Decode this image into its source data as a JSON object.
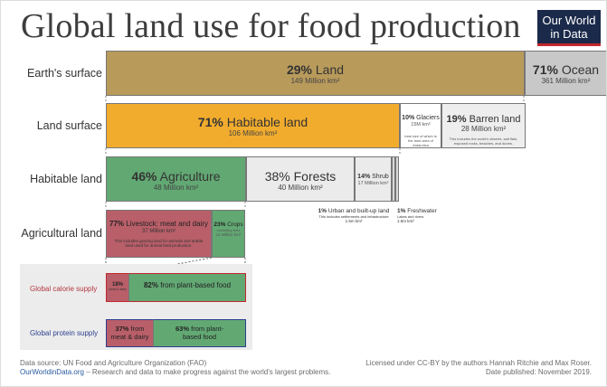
{
  "header": {
    "title": "Global land use for food production",
    "logo_line1": "Our World",
    "logo_line2": "in Data"
  },
  "rows": {
    "earth": "Earth's surface",
    "land": "Land surface",
    "habitable": "Habitable land",
    "agri": "Agricultural land",
    "calorie": "Global calorie supply",
    "protein": "Global protein supply"
  },
  "colors": {
    "land": "#b89a5b",
    "ocean": "#c8c8c8",
    "habitable": "#f2ac2d",
    "barren": "#eeeeee",
    "agriculture": "#62a873",
    "forest": "#ebebeb",
    "livestock": "#b95f69",
    "crops": "#62a873"
  },
  "chart_data": {
    "type": "table",
    "earth": {
      "land": {
        "pct": "29%",
        "name": "Land",
        "area": "149 Million km²",
        "value": 29
      },
      "ocean": {
        "pct": "71%",
        "name": "Ocean",
        "area": "361 Million km²",
        "value": 71
      }
    },
    "land_surface": {
      "habitable": {
        "pct": "71%",
        "name": "Habitable land",
        "area": "106 Million km²",
        "value": 71
      },
      "glaciers": {
        "pct": "10%",
        "name": "Glaciers",
        "area": "15M km²",
        "note": "total size of which is the land area of Antarctica",
        "value": 10
      },
      "barren": {
        "pct": "19%",
        "name": "Barren land",
        "area": "28 Million km²",
        "note": "This includes the world's deserts, salt flats, exposed rocks, beaches, and dunes.",
        "value": 19
      }
    },
    "habitable_land": {
      "agriculture": {
        "pct": "46%",
        "name": "Agriculture",
        "area": "48 Million km²",
        "value": 46
      },
      "forests": {
        "pct": "38%",
        "name": "Forests",
        "area": "40 Million km²",
        "value": 38
      },
      "shrub": {
        "pct": "14%",
        "name": "Shrub",
        "area": "17 Million km²",
        "value": 14
      },
      "urban": {
        "pct": "1%",
        "name": "Urban and built-up land",
        "note": "This includes settlements and infrastructure",
        "area": "1.5m km²",
        "value": 1
      },
      "freshwater": {
        "pct": "1%",
        "name": "Freshwater",
        "note": "Lakes and rivers",
        "area": "1.5m km²",
        "value": 1
      }
    },
    "agricultural_land": {
      "livestock": {
        "pct": "77%",
        "name": "Livestock: meat and dairy",
        "area": "37 Million km²",
        "note": "This includes grazing land for animals and arable land used for animal feed production.",
        "value": 77
      },
      "crops": {
        "pct": "23%",
        "name": "Crops",
        "note": "excluding feed",
        "area": "11 Million km²",
        "value": 23
      }
    },
    "calorie_supply": {
      "meat": {
        "pct": "18%",
        "name": "meat & dairy",
        "value": 18
      },
      "plant": {
        "pct": "82%",
        "name": "from plant-based food",
        "value": 82
      }
    },
    "protein_supply": {
      "meat": {
        "pct": "37%",
        "name": "from meat & dairy",
        "value": 37
      },
      "plant": {
        "pct": "63%",
        "name": "from plant-based food",
        "value": 63
      }
    }
  },
  "footer": {
    "source": "Data source: UN Food and Agriculture Organization (FAO)",
    "site": "OurWorldinData.org",
    "tagline": " – Research and data to make progress against the world's largest problems.",
    "license": "Licensed under CC-BY by the authors Hannah Ritchie and Max Roser.",
    "published": "Date published: November 2019."
  }
}
